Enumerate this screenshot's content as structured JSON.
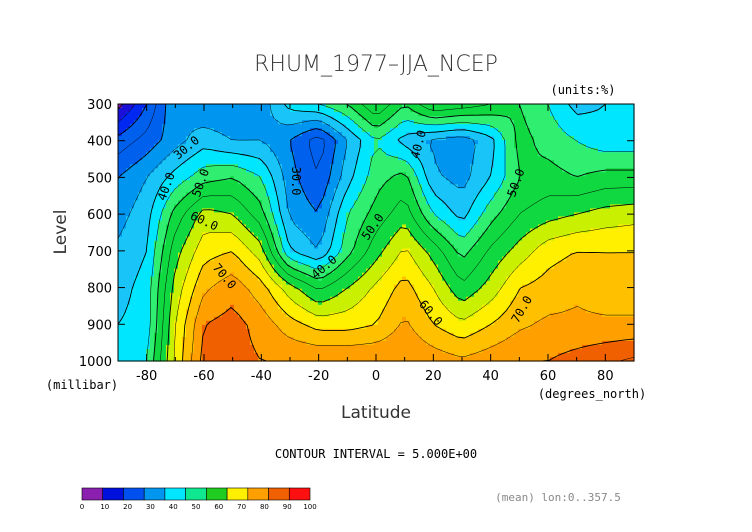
{
  "chart_data": {
    "type": "heatmap",
    "title": "RHUM_1977–JJA_NCEP",
    "units": "(units:%)",
    "xlabel": "Latitude",
    "x_unit": "(degrees_north)",
    "ylabel": "Level",
    "y_unit": "(millibar)",
    "xlim": [
      -90,
      90
    ],
    "ylim": [
      1000,
      300
    ],
    "x_ticks": [
      "-80",
      "-60",
      "-40",
      "-20",
      "0",
      "20",
      "40",
      "60",
      "80"
    ],
    "x_tick_values": [
      -80,
      -60,
      -40,
      -20,
      0,
      20,
      40,
      60,
      80
    ],
    "y_ticks": [
      "300",
      "400",
      "500",
      "600",
      "700",
      "800",
      "900",
      "1000"
    ],
    "y_tick_values": [
      300,
      400,
      500,
      600,
      700,
      800,
      900,
      1000
    ],
    "contour_interval_text": "CONTOUR INTERVAL = 5.000E+00",
    "footer_note": "(mean) lon:0..357.5",
    "latitudes": [
      -90,
      -80,
      -70,
      -60,
      -50,
      -40,
      -30,
      -20,
      -10,
      0,
      10,
      20,
      30,
      40,
      50,
      60,
      70,
      80,
      90
    ],
    "levels": [
      300,
      400,
      500,
      600,
      700,
      800,
      900,
      1000
    ],
    "values": [
      [
        8,
        20,
        35,
        30,
        30,
        32,
        42,
        45,
        50,
        60,
        50,
        60,
        58,
        55,
        50,
        45,
        38,
        40,
        40
      ],
      [
        22,
        27,
        33,
        38,
        35,
        35,
        30,
        22,
        35,
        45,
        38,
        34,
        32,
        38,
        52,
        48,
        45,
        42,
        42
      ],
      [
        30,
        35,
        42,
        48,
        50,
        45,
        32,
        25,
        38,
        48,
        52,
        36,
        33,
        40,
        50,
        52,
        50,
        52,
        52
      ],
      [
        33,
        38,
        52,
        62,
        60,
        52,
        34,
        30,
        45,
        52,
        58,
        45,
        38,
        48,
        55,
        58,
        60,
        62,
        63
      ],
      [
        36,
        40,
        58,
        68,
        70,
        62,
        40,
        35,
        48,
        58,
        66,
        58,
        48,
        56,
        62,
        68,
        70,
        70,
        70
      ],
      [
        38,
        42,
        62,
        74,
        78,
        72,
        62,
        54,
        60,
        66,
        72,
        65,
        56,
        62,
        70,
        72,
        74,
        72,
        72
      ],
      [
        40,
        42,
        65,
        80,
        82,
        78,
        72,
        68,
        68,
        70,
        76,
        70,
        66,
        70,
        74,
        76,
        76,
        76,
        76
      ],
      [
        42,
        45,
        66,
        82,
        82,
        80,
        80,
        80,
        80,
        80,
        80,
        78,
        76,
        78,
        80,
        80,
        82,
        84,
        86
      ]
    ],
    "contour_labels": [
      {
        "text": "30.0",
        "lat": -66,
        "lev": 420,
        "angle": -40
      },
      {
        "text": "40.0",
        "lat": -73,
        "lev": 525,
        "angle": -70
      },
      {
        "text": "50.0",
        "lat": -61,
        "lev": 515,
        "angle": -70
      },
      {
        "text": "60.0",
        "lat": -60,
        "lev": 620,
        "angle": 25
      },
      {
        "text": "70.0",
        "lat": -53,
        "lev": 770,
        "angle": 50
      },
      {
        "text": "30.0",
        "lat": -28,
        "lev": 510,
        "angle": 90
      },
      {
        "text": "40.0",
        "lat": -18,
        "lev": 745,
        "angle": -40
      },
      {
        "text": "50.0",
        "lat": -1,
        "lev": 635,
        "angle": -55
      },
      {
        "text": "40.0",
        "lat": 15,
        "lev": 410,
        "angle": -75
      },
      {
        "text": "50.0",
        "lat": 49,
        "lev": 515,
        "angle": -70
      },
      {
        "text": "60.0",
        "lat": 19,
        "lev": 870,
        "angle": 50
      },
      {
        "text": "70.0",
        "lat": 51,
        "lev": 860,
        "angle": -60
      }
    ],
    "colorbar": {
      "ticks": [
        "0",
        "10",
        "20",
        "30",
        "40",
        "50",
        "60",
        "70",
        "80",
        "90",
        "100"
      ],
      "colors": [
        "#8b1fb0",
        "#0010dc",
        "#0050f0",
        "#0096f0",
        "#00e6ff",
        "#10e890",
        "#20cc20",
        "#fff000",
        "#ffa000",
        "#f06000",
        "#ff1010"
      ]
    },
    "bands": [
      0,
      10,
      15,
      20,
      30,
      35,
      40,
      45,
      50,
      60,
      65,
      70,
      75,
      80,
      90,
      100
    ],
    "band_colors": [
      "#8b1fb0",
      "#1a10d8",
      "#0028f0",
      "#0060ee",
      "#0096f0",
      "#18c4f8",
      "#00e6ff",
      "#30ee70",
      "#10d840",
      "#c8f000",
      "#fff000",
      "#ffc000",
      "#ffa000",
      "#f06000",
      "#ff1010"
    ]
  }
}
